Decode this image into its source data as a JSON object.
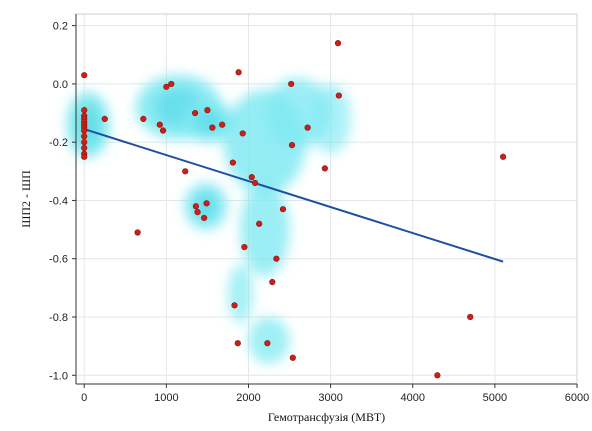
{
  "chart_data": {
    "type": "scatter",
    "title": "",
    "xlabel": "Гемотрансфузія (МВТ)",
    "ylabel": "ШП2 - ШП",
    "xlim": [
      -100,
      6000
    ],
    "ylim": [
      -1.03,
      0.24
    ],
    "xticks": [
      0,
      1000,
      2000,
      3000,
      4000,
      5000,
      6000
    ],
    "yticks": [
      0.2,
      0.0,
      -0.2,
      -0.4,
      -0.6,
      -0.8,
      -1.0
    ],
    "xtick_labels": [
      "0",
      "1000",
      "2000",
      "3000",
      "4000",
      "5000",
      "6000"
    ],
    "ytick_labels": [
      "0.2",
      "0.0",
      "-0.2",
      "-0.4",
      "-0.6",
      "-0.8",
      "-1.0"
    ],
    "grid": true,
    "legend": "none",
    "colors": {
      "points": "#cc1f1a",
      "regression_line": "#1f4ea3",
      "density_low": "#7fe9f2",
      "density_mid": "#a8f06a",
      "density_high": "#ff2a00",
      "grid": "#e6e6e6"
    },
    "points": [
      {
        "x": 0,
        "y": 0.03
      },
      {
        "x": 0,
        "y": -0.09
      },
      {
        "x": 0,
        "y": -0.11
      },
      {
        "x": 0,
        "y": -0.12
      },
      {
        "x": 0,
        "y": -0.13
      },
      {
        "x": 0,
        "y": -0.14
      },
      {
        "x": 0,
        "y": -0.15
      },
      {
        "x": 0,
        "y": -0.16
      },
      {
        "x": 0,
        "y": -0.18
      },
      {
        "x": 0,
        "y": -0.2
      },
      {
        "x": 0,
        "y": -0.22
      },
      {
        "x": 0,
        "y": -0.24
      },
      {
        "x": 0,
        "y": -0.25
      },
      {
        "x": 250,
        "y": -0.12
      },
      {
        "x": 650,
        "y": -0.51
      },
      {
        "x": 720,
        "y": -0.12
      },
      {
        "x": 920,
        "y": -0.14
      },
      {
        "x": 960,
        "y": -0.16
      },
      {
        "x": 1000,
        "y": -0.01
      },
      {
        "x": 1060,
        "y": 0.0
      },
      {
        "x": 1230,
        "y": -0.3
      },
      {
        "x": 1350,
        "y": -0.1
      },
      {
        "x": 1360,
        "y": -0.42
      },
      {
        "x": 1380,
        "y": -0.44
      },
      {
        "x": 1460,
        "y": -0.46
      },
      {
        "x": 1490,
        "y": -0.41
      },
      {
        "x": 1500,
        "y": -0.09
      },
      {
        "x": 1560,
        "y": -0.15
      },
      {
        "x": 1680,
        "y": -0.14
      },
      {
        "x": 1810,
        "y": -0.27
      },
      {
        "x": 1830,
        "y": -0.76
      },
      {
        "x": 1870,
        "y": -0.89
      },
      {
        "x": 1880,
        "y": 0.04
      },
      {
        "x": 1930,
        "y": -0.17
      },
      {
        "x": 1950,
        "y": -0.56
      },
      {
        "x": 2040,
        "y": -0.32
      },
      {
        "x": 2080,
        "y": -0.34
      },
      {
        "x": 2130,
        "y": -0.48
      },
      {
        "x": 2230,
        "y": -0.89
      },
      {
        "x": 2290,
        "y": -0.68
      },
      {
        "x": 2340,
        "y": -0.6
      },
      {
        "x": 2420,
        "y": -0.43
      },
      {
        "x": 2520,
        "y": 0.0
      },
      {
        "x": 2530,
        "y": -0.21
      },
      {
        "x": 2540,
        "y": -0.94
      },
      {
        "x": 2720,
        "y": -0.15
      },
      {
        "x": 2930,
        "y": -0.29
      },
      {
        "x": 3090,
        "y": 0.14
      },
      {
        "x": 3100,
        "y": -0.04
      },
      {
        "x": 4300,
        "y": -1.0
      },
      {
        "x": 4700,
        "y": -0.8
      },
      {
        "x": 5100,
        "y": -0.25
      }
    ],
    "regression_line": [
      {
        "x": 0,
        "y": -0.155
      },
      {
        "x": 5100,
        "y": -0.61
      }
    ],
    "density_blobs": [
      {
        "x": 40,
        "y": -0.14,
        "sx": 140,
        "sy": 0.07,
        "level": 1.0
      },
      {
        "x": 60,
        "y": -0.14,
        "sx": 250,
        "sy": 0.11,
        "level": 0.6
      },
      {
        "x": 1150,
        "y": -0.08,
        "sx": 520,
        "sy": 0.11,
        "level": 0.45
      },
      {
        "x": 1520,
        "y": -0.13,
        "sx": 330,
        "sy": 0.07,
        "level": 0.55
      },
      {
        "x": 1480,
        "y": -0.42,
        "sx": 260,
        "sy": 0.08,
        "level": 0.5
      },
      {
        "x": 2200,
        "y": -0.2,
        "sx": 500,
        "sy": 0.18,
        "level": 0.38
      },
      {
        "x": 2600,
        "y": -0.1,
        "sx": 400,
        "sy": 0.12,
        "level": 0.33
      },
      {
        "x": 2200,
        "y": -0.5,
        "sx": 300,
        "sy": 0.16,
        "level": 0.33
      },
      {
        "x": 2250,
        "y": -0.88,
        "sx": 250,
        "sy": 0.08,
        "level": 0.3
      },
      {
        "x": 1900,
        "y": -0.72,
        "sx": 150,
        "sy": 0.1,
        "level": 0.25
      },
      {
        "x": 3000,
        "y": -0.12,
        "sx": 250,
        "sy": 0.12,
        "level": 0.2
      }
    ]
  }
}
